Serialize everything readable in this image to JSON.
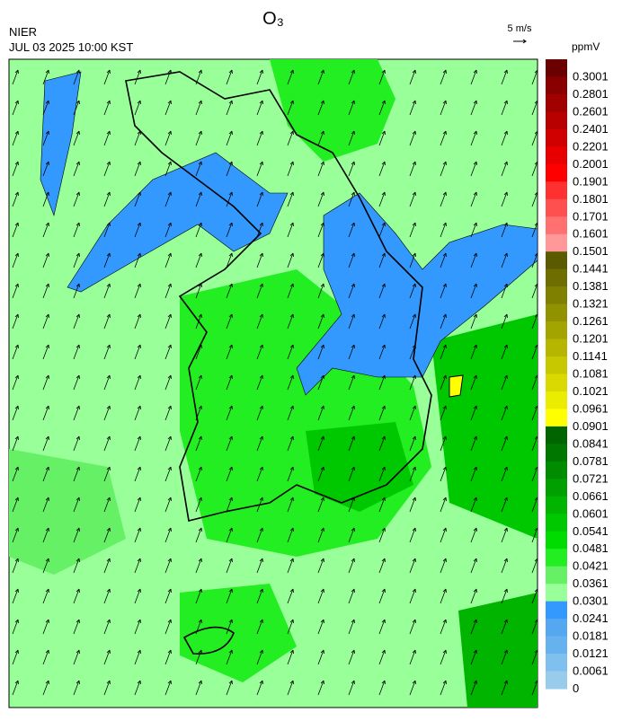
{
  "header": {
    "title": "O₃",
    "agency": "NIER",
    "datetime": "JUL 03 2025 10:00 KST",
    "wind_scale": "5 m/s"
  },
  "colorbar": {
    "unit": "ppmV",
    "levels": [
      {
        "label": "0.3001",
        "color": "#6a0000"
      },
      {
        "label": "0.2801",
        "color": "#880000"
      },
      {
        "label": "0.2601",
        "color": "#a00000"
      },
      {
        "label": "0.2401",
        "color": "#b80000"
      },
      {
        "label": "0.2201",
        "color": "#d00000"
      },
      {
        "label": "0.2001",
        "color": "#e80000"
      },
      {
        "label": "0.1901",
        "color": "#ff0000"
      },
      {
        "label": "0.1801",
        "color": "#ff3030"
      },
      {
        "label": "0.1701",
        "color": "#ff5050"
      },
      {
        "label": "0.1601",
        "color": "#ff7070"
      },
      {
        "label": "0.1501",
        "color": "#ff9898"
      },
      {
        "label": "0.1441",
        "color": "#5a5a00"
      },
      {
        "label": "0.1381",
        "color": "#6e6e00"
      },
      {
        "label": "0.1321",
        "color": "#808000"
      },
      {
        "label": "0.1261",
        "color": "#929200"
      },
      {
        "label": "0.1201",
        "color": "#a4a400"
      },
      {
        "label": "0.1141",
        "color": "#b6b600"
      },
      {
        "label": "0.1081",
        "color": "#c8c800"
      },
      {
        "label": "0.1021",
        "color": "#dada00"
      },
      {
        "label": "0.0961",
        "color": "#ecec00"
      },
      {
        "label": "0.0901",
        "color": "#ffff00"
      },
      {
        "label": "0.0841",
        "color": "#006400"
      },
      {
        "label": "0.0781",
        "color": "#007800"
      },
      {
        "label": "0.0721",
        "color": "#008c00"
      },
      {
        "label": "0.0661",
        "color": "#00a000"
      },
      {
        "label": "0.0601",
        "color": "#00b400"
      },
      {
        "label": "0.0541",
        "color": "#00c800"
      },
      {
        "label": "0.0481",
        "color": "#00dc00"
      },
      {
        "label": "0.0421",
        "color": "#22ee22"
      },
      {
        "label": "0.0361",
        "color": "#66f066"
      },
      {
        "label": "0.0301",
        "color": "#99ff99"
      },
      {
        "label": "0.0241",
        "color": "#3399ff"
      },
      {
        "label": "0.0181",
        "color": "#55a8f0"
      },
      {
        "label": "0.0121",
        "color": "#66b2ee"
      },
      {
        "label": "0.0061",
        "color": "#80c0ee"
      },
      {
        "label": "0",
        "color": "#99ccea"
      }
    ]
  }
}
